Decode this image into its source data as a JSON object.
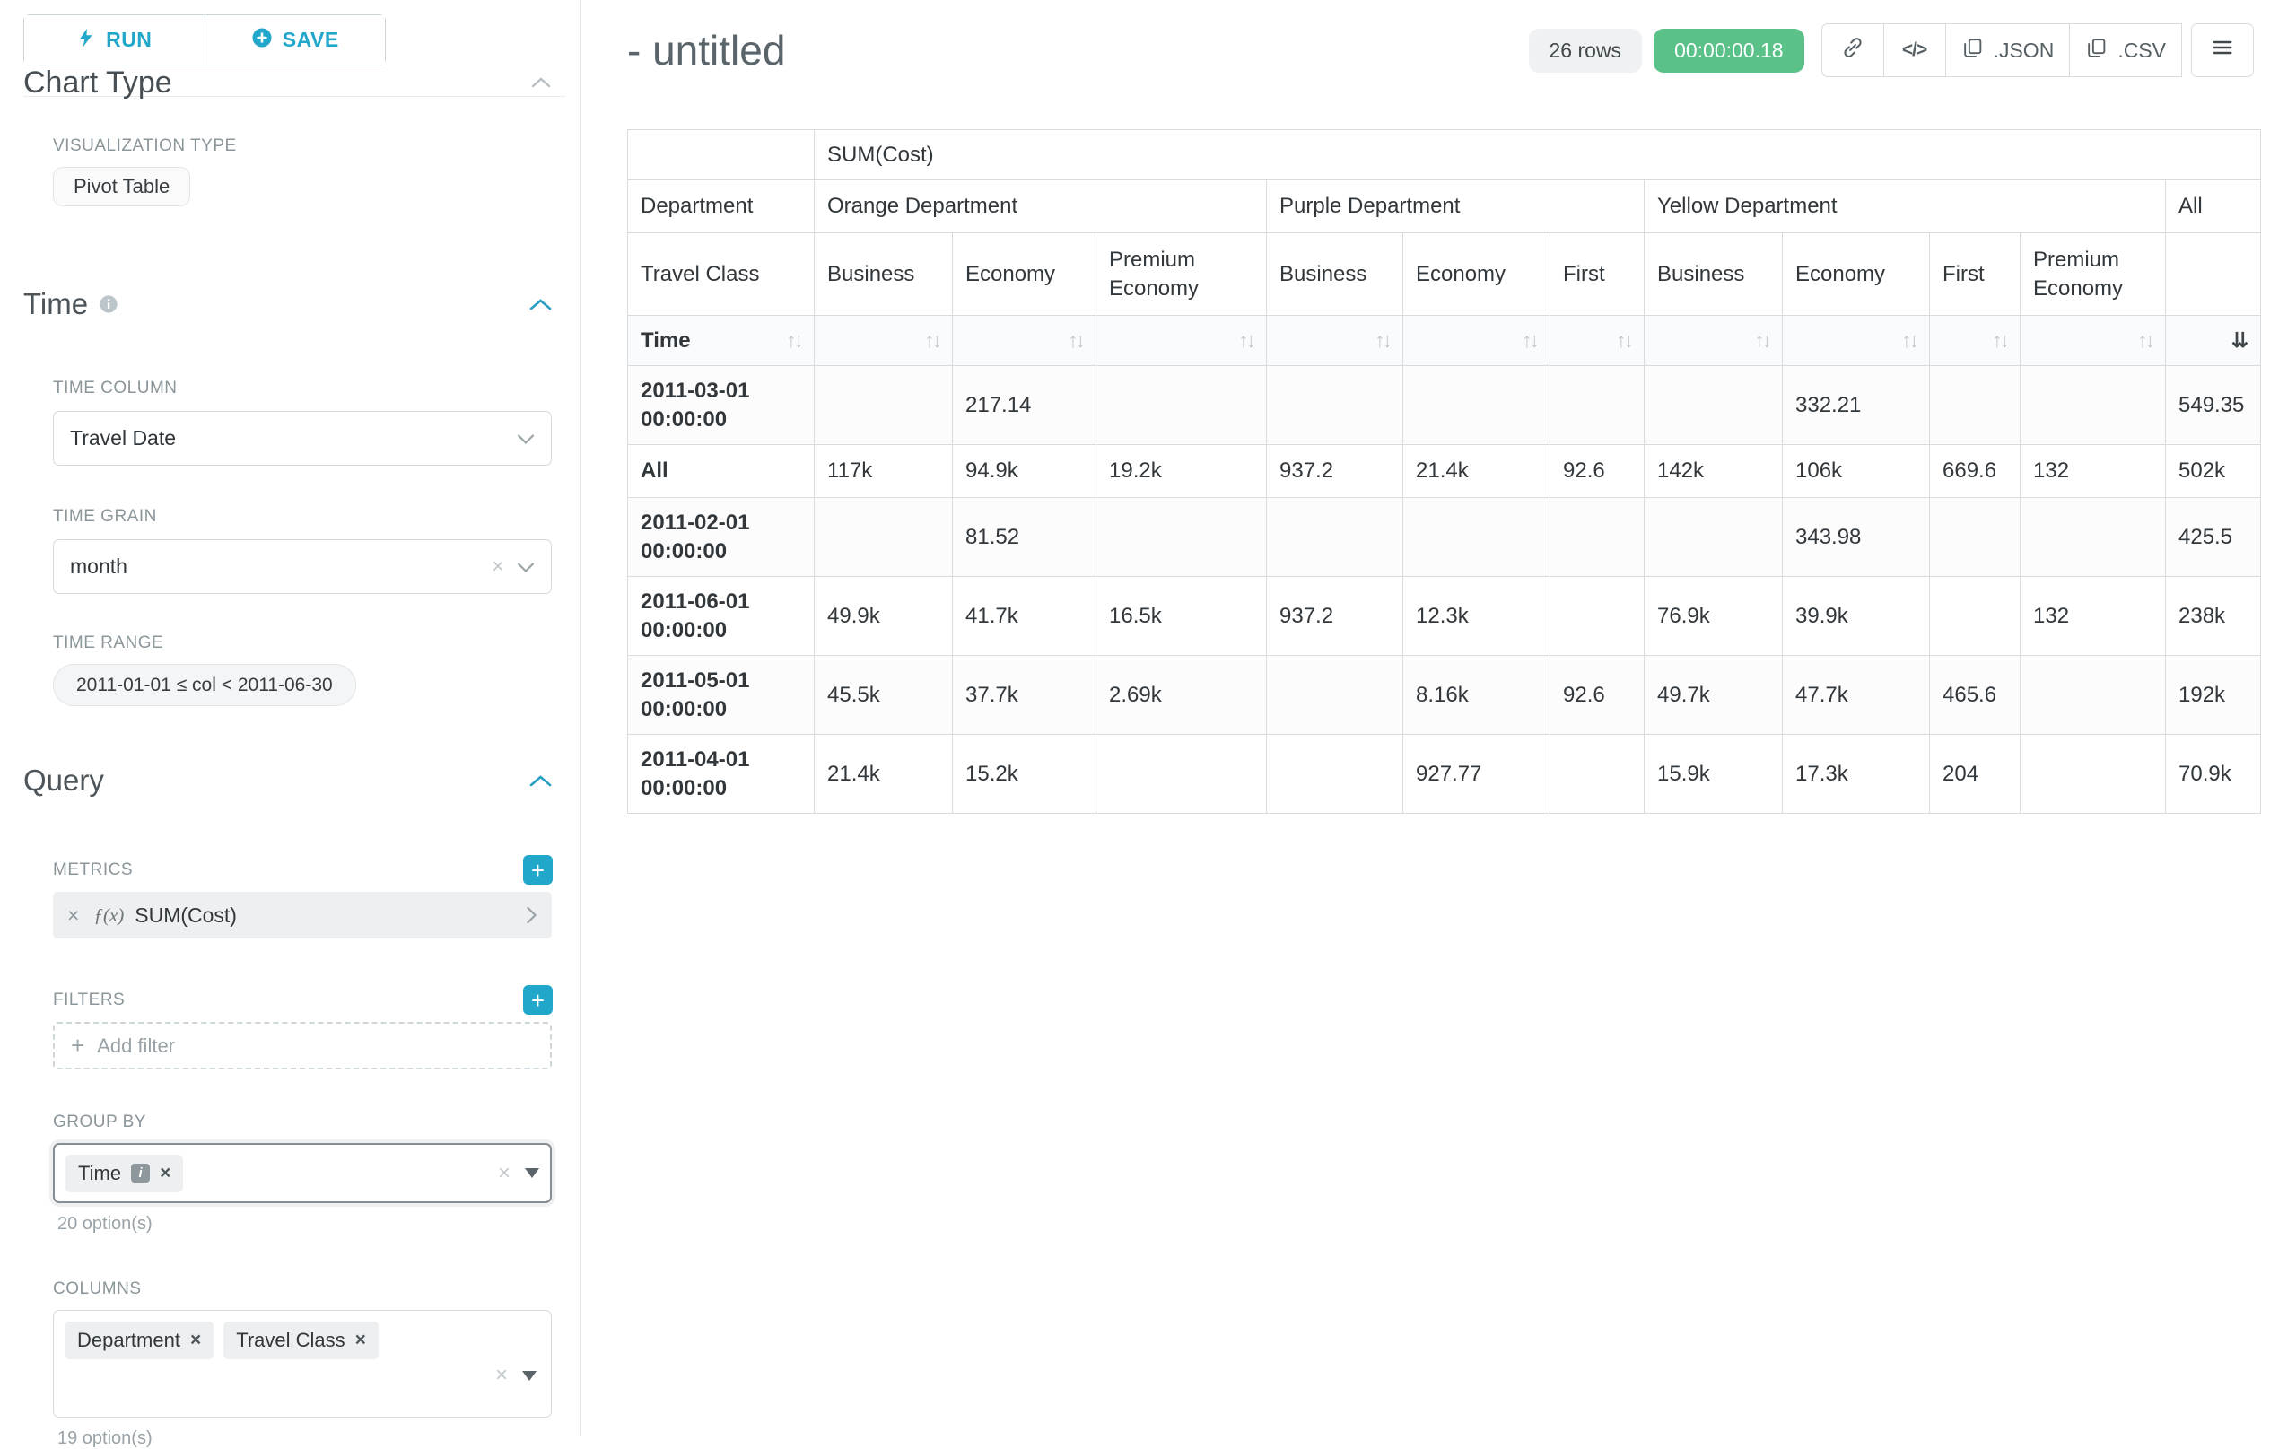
{
  "sidebar": {
    "run_label": "RUN",
    "save_label": "SAVE",
    "chart_type_heading": "Chart Type",
    "viz_label": "VISUALIZATION TYPE",
    "viz_value": "Pivot Table",
    "time": {
      "title": "Time",
      "column_label": "TIME COLUMN",
      "column_value": "Travel Date",
      "grain_label": "TIME GRAIN",
      "grain_value": "month",
      "range_label": "TIME RANGE",
      "range_value": "2011-01-01 ≤ col < 2011-06-30"
    },
    "query": {
      "title": "Query",
      "metrics_label": "METRICS",
      "metric_fx": "ƒ(x)",
      "metric_value": "SUM(Cost)",
      "filters_label": "FILTERS",
      "add_filter": "Add filter",
      "group_by_label": "GROUP BY",
      "group_by_pills": [
        "Time"
      ],
      "group_by_count": "20 option(s)",
      "columns_label": "COLUMNS",
      "columns_pills": [
        "Department",
        "Travel Class"
      ],
      "columns_count": "19 option(s)"
    }
  },
  "header": {
    "title": "- untitled",
    "rows_badge": "26 rows",
    "timer": "00:00:00.18",
    "code_glyph": "</>",
    "json_label": ".JSON",
    "csv_label": ".CSV"
  },
  "table": {
    "metric": "SUM(Cost)",
    "row1_label": "Department",
    "row2_label": "Travel Class",
    "row3_label": "Time",
    "groups": [
      {
        "name": "Orange Department",
        "cols": [
          "Business",
          "Economy",
          "Premium Economy"
        ]
      },
      {
        "name": "Purple Department",
        "cols": [
          "Business",
          "Economy",
          "First"
        ]
      },
      {
        "name": "Yellow Department",
        "cols": [
          "Business",
          "Economy",
          "First",
          "Premium Economy"
        ]
      },
      {
        "name": "All",
        "cols": [
          ""
        ]
      }
    ],
    "rows": [
      {
        "label": "2011-03-01 00:00:00",
        "values": [
          "",
          "217.14",
          "",
          "",
          "",
          "",
          "",
          "332.21",
          "",
          "",
          "549.35"
        ]
      },
      {
        "label": "All",
        "values": [
          "117k",
          "94.9k",
          "19.2k",
          "937.2",
          "21.4k",
          "92.6",
          "142k",
          "106k",
          "669.6",
          "132",
          "502k"
        ]
      },
      {
        "label": "2011-02-01 00:00:00",
        "values": [
          "",
          "81.52",
          "",
          "",
          "",
          "",
          "",
          "343.98",
          "",
          "",
          "425.5"
        ]
      },
      {
        "label": "2011-06-01 00:00:00",
        "values": [
          "49.9k",
          "41.7k",
          "16.5k",
          "937.2",
          "12.3k",
          "",
          "76.9k",
          "39.9k",
          "",
          "132",
          "238k"
        ]
      },
      {
        "label": "2011-05-01 00:00:00",
        "values": [
          "45.5k",
          "37.7k",
          "2.69k",
          "",
          "8.16k",
          "92.6",
          "49.7k",
          "47.7k",
          "465.6",
          "",
          "192k"
        ]
      },
      {
        "label": "2011-04-01 00:00:00",
        "values": [
          "21.4k",
          "15.2k",
          "",
          "",
          "927.77",
          "",
          "15.9k",
          "17.3k",
          "204",
          "",
          "70.9k"
        ]
      }
    ]
  }
}
